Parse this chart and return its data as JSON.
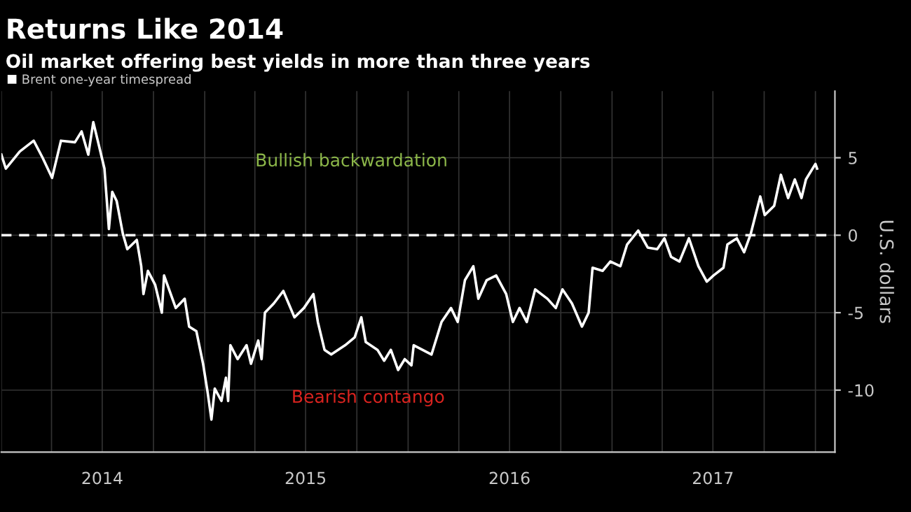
{
  "chart_data": {
    "type": "line",
    "title": "Returns Like 2014",
    "subtitle": "Oil market offering best yields in more than three years",
    "ylabel": "U.S. dollars",
    "annotations": [
      "Bullish backwardation",
      "Bearish contango"
    ],
    "legend": "top left",
    "grid": true,
    "marker": "none",
    "line_style": "solid",
    "xlim": [
      "2014-01-01",
      "2018-02-05"
    ],
    "ylim": [
      -14,
      9.3
    ],
    "yticks": [
      -10,
      -5,
      0,
      5
    ],
    "xticks": [
      {
        "value": "2014-01-01",
        "label": null
      },
      {
        "value": "2014-04-01",
        "label": null
      },
      {
        "value": "2014-07-01",
        "label": "2014"
      },
      {
        "value": "2014-10-01",
        "label": null
      },
      {
        "value": "2015-01-01",
        "label": null
      },
      {
        "value": "2015-04-01",
        "label": null
      },
      {
        "value": "2015-07-01",
        "label": "2015"
      },
      {
        "value": "2015-10-01",
        "label": null
      },
      {
        "value": "2016-01-01",
        "label": null
      },
      {
        "value": "2016-04-01",
        "label": null
      },
      {
        "value": "2016-07-01",
        "label": "2016"
      },
      {
        "value": "2016-10-01",
        "label": null
      },
      {
        "value": "2017-01-01",
        "label": null
      },
      {
        "value": "2017-04-01",
        "label": null
      },
      {
        "value": "2017-07-01",
        "label": "2017"
      },
      {
        "value": "2017-10-01",
        "label": null
      },
      {
        "value": "2018-01-01",
        "label": null
      }
    ],
    "ref_lines": [
      {
        "axis": "y",
        "value": 0,
        "label": null,
        "color": "#ffffff",
        "line_style": "dashed"
      }
    ],
    "series": [
      {
        "name": "Brent one-year timespread",
        "color": "#ffffff",
        "x": [
          "2014-01-01",
          "2014-01-09",
          "2014-02-03",
          "2014-02-28",
          "2014-03-16",
          "2014-04-02",
          "2014-04-18",
          "2014-05-13",
          "2014-05-25",
          "2014-06-06",
          "2014-06-15",
          "2014-06-23",
          "2014-07-05",
          "2014-07-13",
          "2014-07-19",
          "2014-07-27",
          "2014-08-07",
          "2014-08-15",
          "2014-09-01",
          "2014-09-09",
          "2014-09-13",
          "2014-09-21",
          "2014-10-04",
          "2014-10-16",
          "2014-10-20",
          "2014-11-10",
          "2014-11-26",
          "2014-12-04",
          "2014-12-17",
          "2014-12-29",
          "2015-01-06",
          "2015-01-13",
          "2015-01-19",
          "2015-01-31",
          "2015-02-08",
          "2015-02-12",
          "2015-02-16",
          "2015-03-01",
          "2015-03-17",
          "2015-03-25",
          "2015-04-07",
          "2015-04-13",
          "2015-04-19",
          "2015-05-05",
          "2015-05-22",
          "2015-06-11",
          "2015-06-28",
          "2015-07-15",
          "2015-07-23",
          "2015-08-04",
          "2015-08-16",
          "2015-09-10",
          "2015-09-27",
          "2015-10-09",
          "2015-10-17",
          "2015-11-07",
          "2015-11-19",
          "2015-12-01",
          "2015-12-14",
          "2015-12-26",
          "2016-01-07",
          "2016-01-11",
          "2016-02-12",
          "2016-03-01",
          "2016-03-18",
          "2016-03-30",
          "2016-04-12",
          "2016-04-27",
          "2016-05-06",
          "2016-05-21",
          "2016-06-07",
          "2016-06-25",
          "2016-07-07",
          "2016-07-19",
          "2016-08-01",
          "2016-08-16",
          "2016-09-07",
          "2016-09-22",
          "2016-10-04",
          "2016-10-21",
          "2016-11-08",
          "2016-11-20",
          "2016-11-27",
          "2016-12-15",
          "2016-12-29",
          "2017-01-16",
          "2017-01-28",
          "2017-02-17",
          "2017-03-06",
          "2017-03-23",
          "2017-04-05",
          "2017-04-17",
          "2017-05-02",
          "2017-05-19",
          "2017-06-05",
          "2017-06-20",
          "2017-07-02",
          "2017-07-20",
          "2017-07-27",
          "2017-08-13",
          "2017-08-26",
          "2017-09-07",
          "2017-09-24",
          "2017-10-02",
          "2017-10-19",
          "2017-10-31",
          "2017-11-13",
          "2017-11-25",
          "2017-12-07",
          "2017-12-15",
          "2018-01-01",
          "2018-01-04"
        ],
        "values": [
          5.2,
          4.3,
          5.4,
          6.1,
          5.0,
          3.7,
          6.1,
          6.0,
          6.7,
          5.2,
          7.3,
          6.1,
          4.3,
          0.4,
          2.8,
          2.2,
          0.1,
          -0.9,
          -0.3,
          -2.0,
          -3.8,
          -2.3,
          -3.2,
          -5.0,
          -2.6,
          -4.7,
          -4.1,
          -5.9,
          -6.2,
          -8.3,
          -10.1,
          -11.9,
          -9.9,
          -10.7,
          -9.2,
          -10.7,
          -7.1,
          -8.0,
          -7.1,
          -8.3,
          -6.8,
          -8.0,
          -5.0,
          -4.4,
          -3.6,
          -5.3,
          -4.7,
          -3.8,
          -5.6,
          -7.4,
          -7.7,
          -7.1,
          -6.6,
          -5.3,
          -6.9,
          -7.4,
          -8.1,
          -7.4,
          -8.7,
          -8.0,
          -8.4,
          -7.1,
          -7.7,
          -5.6,
          -4.7,
          -5.6,
          -2.9,
          -2.0,
          -4.1,
          -2.9,
          -2.6,
          -3.8,
          -5.6,
          -4.7,
          -5.6,
          -3.5,
          -4.1,
          -4.7,
          -3.5,
          -4.4,
          -5.9,
          -5.0,
          -2.1,
          -2.3,
          -1.7,
          -2.0,
          -0.6,
          0.3,
          -0.8,
          -0.9,
          -0.2,
          -1.4,
          -1.7,
          -0.2,
          -2.0,
          -3.0,
          -2.6,
          -2.1,
          -0.6,
          -0.2,
          -1.1,
          0.1,
          2.5,
          1.3,
          1.9,
          3.9,
          2.4,
          3.6,
          2.4,
          3.6,
          4.6,
          4.3
        ]
      }
    ]
  }
}
